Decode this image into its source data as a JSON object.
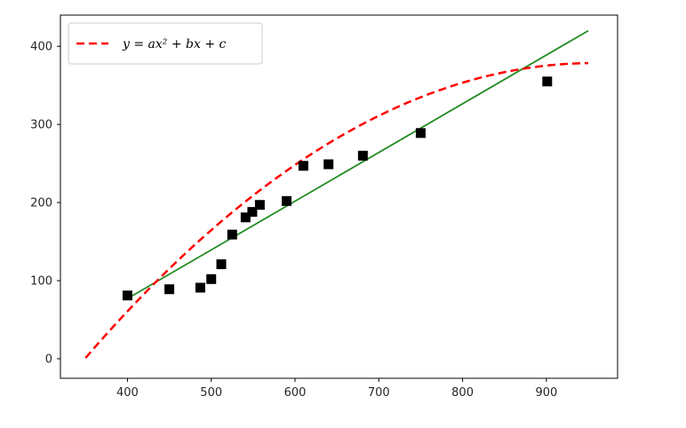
{
  "chart_data": {
    "type": "scatter",
    "xlim": [
      320,
      985
    ],
    "ylim": [
      -25,
      440
    ],
    "x_ticks": [
      400,
      500,
      600,
      700,
      800,
      900
    ],
    "y_ticks": [
      0,
      100,
      200,
      300,
      400
    ],
    "grid": false,
    "legend_position": "top-left",
    "points": [
      {
        "x": 400,
        "y": 81
      },
      {
        "x": 450,
        "y": 89
      },
      {
        "x": 487,
        "y": 91
      },
      {
        "x": 500,
        "y": 102
      },
      {
        "x": 512,
        "y": 121
      },
      {
        "x": 525,
        "y": 159
      },
      {
        "x": 541,
        "y": 181
      },
      {
        "x": 549,
        "y": 188
      },
      {
        "x": 558,
        "y": 197
      },
      {
        "x": 590,
        "y": 202
      },
      {
        "x": 610,
        "y": 247
      },
      {
        "x": 640,
        "y": 249
      },
      {
        "x": 681,
        "y": 260
      },
      {
        "x": 750,
        "y": 289
      },
      {
        "x": 901,
        "y": 355
      }
    ],
    "linear_fit": {
      "x_start": 400,
      "x_end": 950,
      "y_start": 77,
      "y_end": 420,
      "color": "#228b22"
    },
    "quadratic_fit": {
      "legend_label": "y = ax² + bx + c",
      "a": -0.0010265,
      "b": 1.96357,
      "c": -560.45,
      "x_start": 350,
      "x_end": 950,
      "color": "#ff0000"
    },
    "marker_color": "#000000"
  }
}
